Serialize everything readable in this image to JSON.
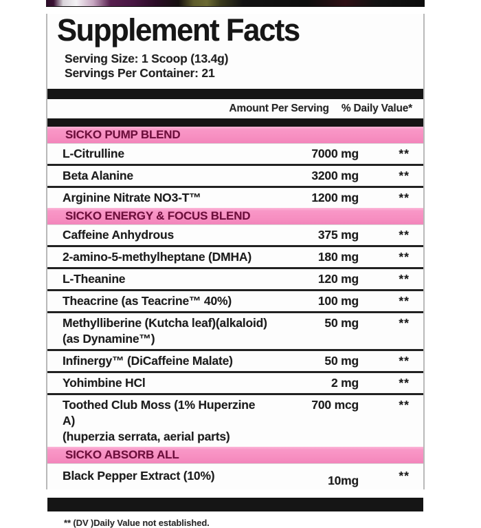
{
  "label": {
    "title": "Supplement Facts",
    "serving_size": "Serving Size: 1 Scoop (13.4g)",
    "servings_per_container": "Servings Per Container: 21",
    "columns": {
      "amount": "Amount Per Serving",
      "daily_value": "% Daily Value*"
    },
    "sections": [
      {
        "name": "SICKO PUMP BLEND",
        "rows": [
          {
            "name": "L-Citrulline",
            "amount": "7000 mg",
            "dv": "**"
          },
          {
            "name": "Beta Alanine",
            "amount": "3200 mg",
            "dv": "**"
          },
          {
            "name": "Arginine Nitrate NO3-T™",
            "amount": "1200 mg",
            "dv": "**"
          }
        ]
      },
      {
        "name": "SICKO ENERGY & FOCUS BLEND",
        "rows": [
          {
            "name": "Caffeine Anhydrous",
            "amount": "375 mg",
            "dv": "**"
          },
          {
            "name": "2-amino-5-methylheptane (DMHA)",
            "amount": "180 mg",
            "dv": "**"
          },
          {
            "name": "L-Theanine",
            "amount": "120 mg",
            "dv": "**"
          },
          {
            "name": "Theacrine (as Teacrine™ 40%)",
            "amount": "100 mg",
            "dv": "**"
          },
          {
            "name": "Methylliberine (Kutcha leaf)(alkaloid)",
            "name2": "(as Dynamine™)",
            "amount": "50 mg",
            "dv": "**"
          },
          {
            "name": "Infinergy™ (DiCaffeine Malate)",
            "amount": "50 mg",
            "dv": "**"
          },
          {
            "name": "Yohimbine HCl",
            "amount": "2 mg",
            "dv": "**"
          },
          {
            "name": "Toothed Club Moss (1% Huperzine A)",
            "name2": "(huperzia serrata, aerial parts)",
            "amount": "700 mcg",
            "dv": "**"
          }
        ]
      },
      {
        "name": "SICKO ABSORB ALL",
        "rows": [
          {
            "name": "Black Pepper Extract (10%)",
            "amount": "10mg",
            "dv": "**"
          }
        ]
      }
    ],
    "footnote": "** (DV )Daily Value not established."
  },
  "colors": {
    "pink_band": "#f78fc1",
    "pink_band_text": "#6d0f3c",
    "bar_black": "#151515",
    "panel_background": "#fdfdfd"
  }
}
